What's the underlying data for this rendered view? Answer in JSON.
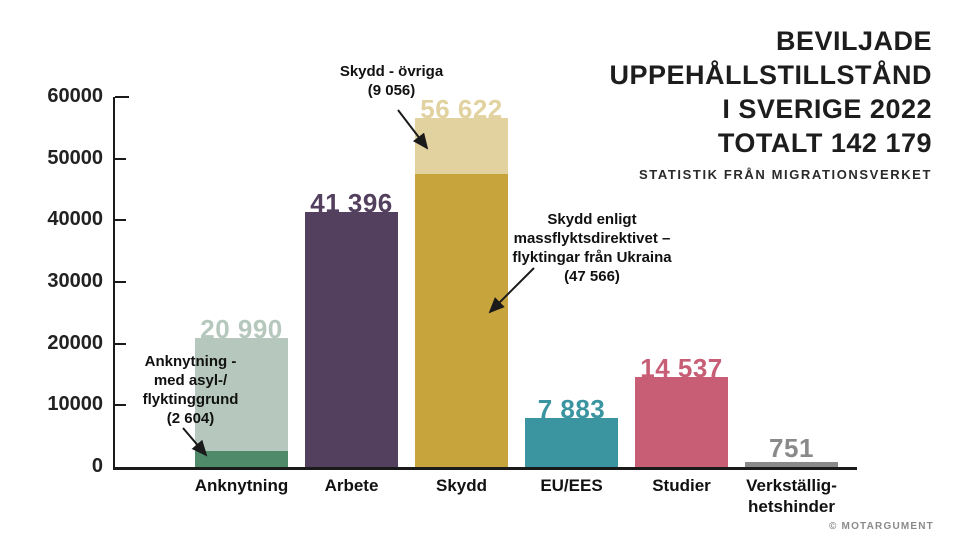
{
  "header": {
    "title_lines": [
      "BEVILJADE",
      "UPPEHÅLLSTILLSTÅND",
      "I SVERIGE 2022",
      "TOTALT 142 179"
    ],
    "subtitle": "STATISTIK FRÅN MIGRATIONSVERKET"
  },
  "footer": {
    "credit": "© MOTARGUMENT"
  },
  "annotations": {
    "anknytning": {
      "lines": [
        "Anknytning -",
        "med asyl-/",
        "flyktinggrund",
        "(2 604)"
      ]
    },
    "skydd_ovriga": {
      "lines": [
        "Skydd - övriga",
        "(9 056)"
      ]
    },
    "ukraina": {
      "lines": [
        "Skydd enligt",
        "massflyktsdirektivet –",
        "flyktingar från Ukraina",
        "(47 566)"
      ]
    }
  },
  "chart_data": {
    "type": "bar",
    "title": "Beviljade uppehållstillstånd i Sverige 2022, totalt 142 179",
    "total": 142179,
    "ylim": [
      0,
      60000
    ],
    "y_tick_step": 10000,
    "grid": false,
    "legend": "none",
    "y_ticks": [
      {
        "value": 0,
        "label": "0"
      },
      {
        "value": 10000,
        "label": "10000"
      },
      {
        "value": 20000,
        "label": "20000"
      },
      {
        "value": 30000,
        "label": "30000"
      },
      {
        "value": 40000,
        "label": "40000"
      },
      {
        "value": 50000,
        "label": "50000"
      },
      {
        "value": 60000,
        "label": "60000"
      }
    ],
    "categories": [
      "Anknytning",
      "Arbete",
      "Skydd",
      "EU/EES",
      "Studier",
      "Verkställighetshinder"
    ],
    "bars": [
      {
        "category_lines": [
          "Anknytning"
        ],
        "value": 20990,
        "value_label": "20 990",
        "color": "#b6c8bd",
        "segments": [
          {
            "label": "Anknytning - med asyl-/flyktinggrund (2 604)",
            "value": 2604,
            "color": "#4f8a6a"
          }
        ]
      },
      {
        "category_lines": [
          "Arbete"
        ],
        "value": 41396,
        "value_label": "41 396",
        "color": "#53405f"
      },
      {
        "category_lines": [
          "Skydd"
        ],
        "value": 56622,
        "value_label": "56 622",
        "color": "#e2d2a0",
        "segments": [
          {
            "label": "Skydd enligt massflyktsdirektivet – flyktingar från Ukraina (47 566)",
            "value": 47566,
            "color": "#c8a43d"
          }
        ],
        "top_segment_label": "Skydd - övriga (9 056)"
      },
      {
        "category_lines": [
          "EU/EES"
        ],
        "value": 7883,
        "value_label": "7 883",
        "color": "#3a95a1"
      },
      {
        "category_lines": [
          "Studier"
        ],
        "value": 14537,
        "value_label": "14 537",
        "color": "#c75e76"
      },
      {
        "category_lines": [
          "Verkställig-",
          "hetshinder"
        ],
        "value": 751,
        "value_label": "751",
        "color": "#8a8a8a"
      }
    ]
  }
}
